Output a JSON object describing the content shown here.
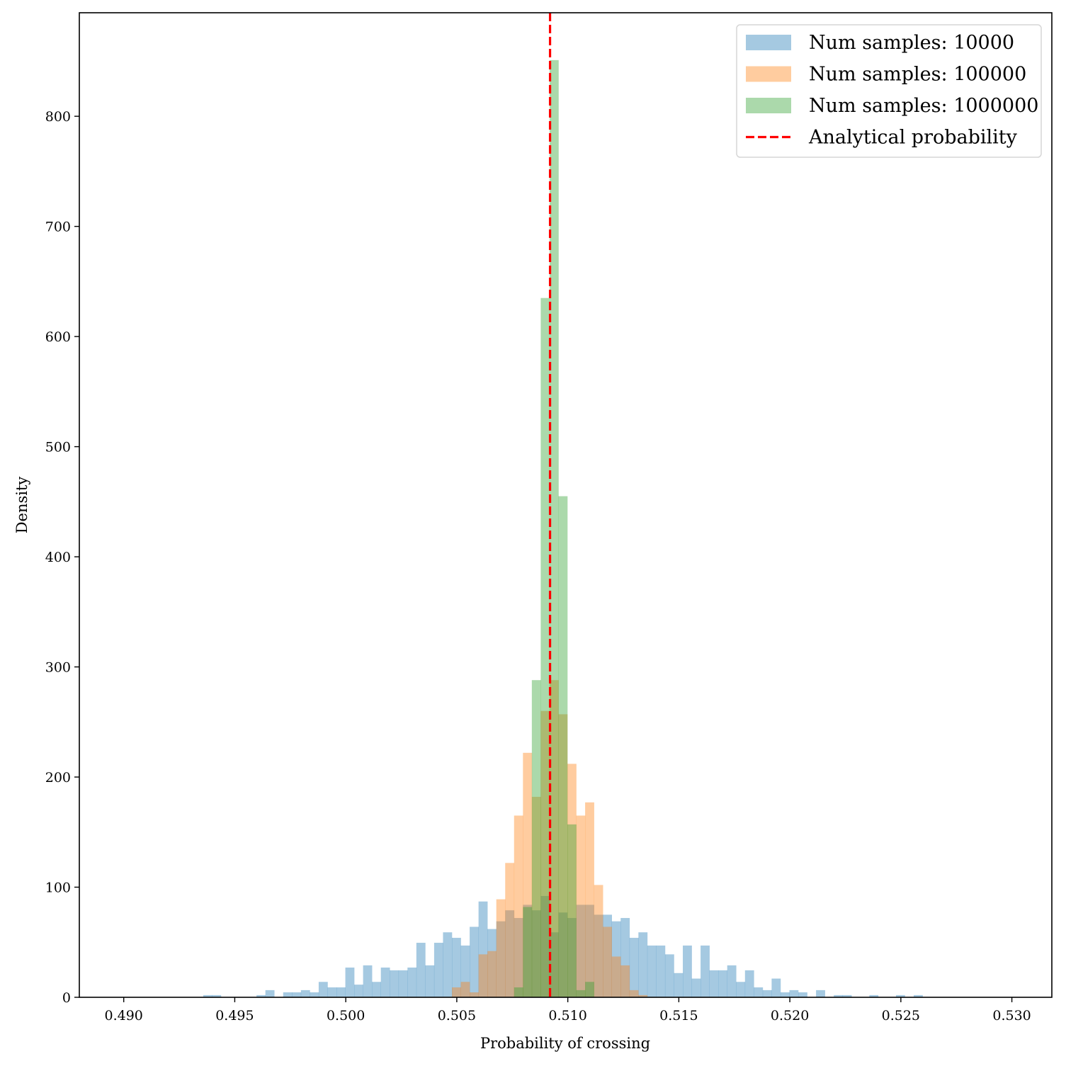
{
  "chart_data": {
    "type": "histogram",
    "title": "",
    "xlabel": "Probability of crossing",
    "ylabel": "Density",
    "xlim": [
      0.488,
      0.5318
    ],
    "ylim": [
      0,
      894
    ],
    "xticks": [
      0.49,
      0.495,
      0.5,
      0.505,
      0.51,
      0.515,
      0.52,
      0.525,
      0.53
    ],
    "xtick_labels": [
      "0.490",
      "0.495",
      "0.500",
      "0.505",
      "0.510",
      "0.515",
      "0.520",
      "0.525",
      "0.530"
    ],
    "yticks": [
      0,
      100,
      200,
      300,
      400,
      500,
      600,
      700,
      800
    ],
    "ytick_labels": [
      "0",
      "100",
      "200",
      "300",
      "400",
      "500",
      "600",
      "700",
      "800"
    ],
    "grid": false,
    "legend_position": "top-right",
    "bin_width": 0.0004,
    "series": [
      {
        "name": "Num samples: 10000",
        "color": "#1f77b4",
        "alpha": 0.4,
        "bin_start": 0.49358,
        "values": [
          2,
          2,
          0,
          0,
          0,
          0,
          2,
          6.5,
          0,
          4.5,
          4.5,
          6.5,
          4.5,
          14,
          9,
          9,
          27,
          11.5,
          29,
          14,
          27,
          24.5,
          24.5,
          27,
          49.5,
          29,
          49.5,
          59,
          54,
          47,
          64,
          87,
          62,
          69,
          79,
          72,
          84,
          79,
          92,
          59,
          77,
          72,
          84,
          84,
          75,
          75,
          69,
          72,
          54,
          59,
          47,
          47,
          39,
          22,
          47,
          17,
          47,
          24.5,
          24.5,
          29,
          14,
          24.5,
          9,
          6.5,
          17,
          4.5,
          6.5,
          4.5,
          0,
          6.5,
          0,
          2,
          2,
          0,
          0,
          2,
          0,
          0,
          2,
          0,
          2
        ]
      },
      {
        "name": "Num samples: 100000",
        "color": "#ff7f0e",
        "alpha": 0.4,
        "bin_start": 0.50478,
        "values": [
          9,
          14,
          4.5,
          39,
          42,
          89,
          122,
          165,
          222,
          182,
          260,
          288,
          257,
          212,
          165,
          177,
          102,
          64,
          37,
          29,
          6.5,
          2
        ]
      },
      {
        "name": "Num samples: 1000000",
        "color": "#2ca02c",
        "alpha": 0.4,
        "bin_start": 0.50758,
        "values": [
          9,
          82,
          288,
          635,
          851,
          455,
          157,
          6.5,
          14
        ]
      }
    ],
    "reference_line": {
      "name": "Analytical probability",
      "x": 0.5092,
      "color": "#ff0000",
      "style": "dashed"
    }
  }
}
